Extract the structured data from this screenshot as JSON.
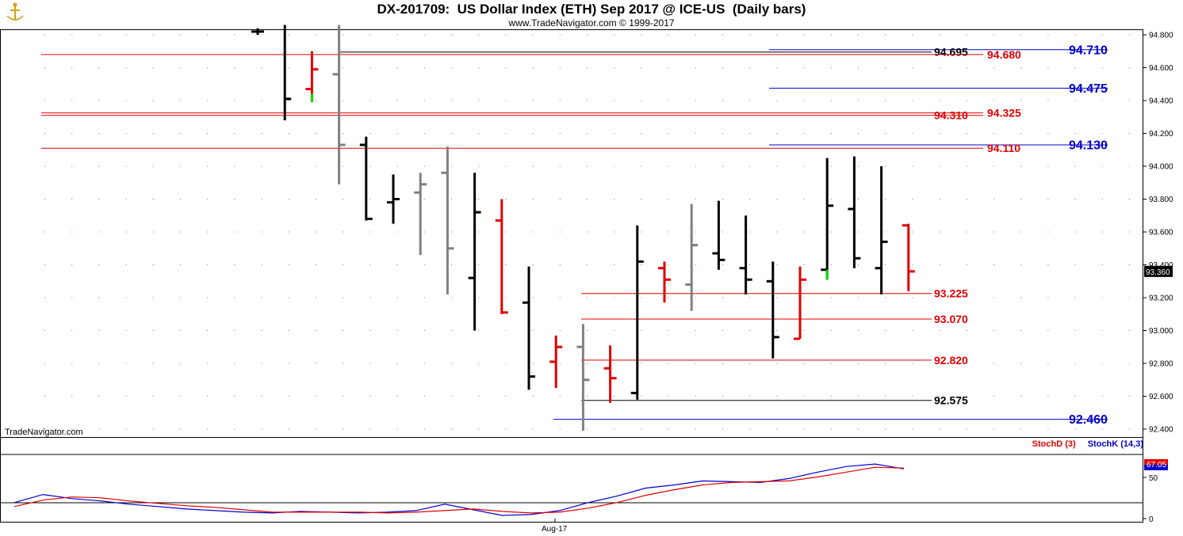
{
  "header": {
    "title": "DX-201709:  US Dollar Index (ETH) Sep 2017 @ ICE-US  (Daily bars)",
    "subtitle": "www.TradeNavigator.com © 1999-2017",
    "watermark": "TradeNavigator.com"
  },
  "colors": {
    "up": "#000000",
    "down": "#e00000",
    "neutral": "#808080",
    "stoch_d": "#e00000",
    "stoch_k": "#0000cc",
    "accent_green": "#00e000"
  },
  "chart_data": [
    {
      "type": "ohlc",
      "ylim": [
        92.38,
        94.86
      ],
      "yticks": [
        "94.800",
        "94.600",
        "94.400",
        "94.200",
        "94.000",
        "93.800",
        "93.600",
        "93.400",
        "93.200",
        "93.000",
        "92.800",
        "92.600",
        "92.400"
      ],
      "last_price": "93.360",
      "bars": [
        {
          "o": 94.82,
          "h": 94.84,
          "l": 94.8,
          "c": 94.82,
          "color": "black"
        },
        {
          "o": null,
          "h": 94.86,
          "l": 94.28,
          "c": 94.41,
          "color": "black"
        },
        {
          "o": 94.47,
          "h": 94.7,
          "l": 94.39,
          "c": 94.59,
          "color": "red",
          "green_tail": [
            94.39,
            94.44
          ]
        },
        {
          "o": 94.56,
          "h": 94.86,
          "l": 93.89,
          "c": 94.13,
          "color": "gray"
        },
        {
          "o": 94.13,
          "h": 94.18,
          "l": 93.67,
          "c": 93.68,
          "color": "black"
        },
        {
          "o": 93.78,
          "h": 93.95,
          "l": 93.65,
          "c": 93.8,
          "color": "black"
        },
        {
          "o": 93.84,
          "h": 93.96,
          "l": 93.46,
          "c": 93.89,
          "color": "gray"
        },
        {
          "o": 93.96,
          "h": 94.12,
          "l": 93.22,
          "c": 93.5,
          "color": "gray"
        },
        {
          "o": 93.32,
          "h": 93.96,
          "l": 93.0,
          "c": 93.72,
          "color": "black"
        },
        {
          "o": 93.67,
          "h": 93.8,
          "l": 93.1,
          "c": 93.11,
          "color": "red"
        },
        {
          "o": 93.17,
          "h": 93.39,
          "l": 92.64,
          "c": 92.72,
          "color": "black"
        },
        {
          "o": 92.81,
          "h": 92.97,
          "l": 92.65,
          "c": 92.9,
          "color": "red"
        },
        {
          "o": 92.9,
          "h": 93.04,
          "l": 92.39,
          "c": 92.7,
          "color": "gray"
        },
        {
          "o": 92.77,
          "h": 92.91,
          "l": 92.56,
          "c": 92.71,
          "color": "red"
        },
        {
          "o": 92.62,
          "h": 93.64,
          "l": 92.58,
          "c": 93.42,
          "color": "black"
        },
        {
          "o": 93.38,
          "h": 93.42,
          "l": 93.17,
          "c": 93.31,
          "color": "red"
        },
        {
          "o": 93.28,
          "h": 93.77,
          "l": 93.12,
          "c": 93.52,
          "color": "gray"
        },
        {
          "o": 93.47,
          "h": 93.79,
          "l": 93.37,
          "c": 93.43,
          "color": "black"
        },
        {
          "o": 93.38,
          "h": 93.7,
          "l": 93.22,
          "c": 93.31,
          "color": "black"
        },
        {
          "o": 93.3,
          "h": 93.42,
          "l": 92.83,
          "c": 92.96,
          "color": "black"
        },
        {
          "o": 92.95,
          "h": 93.39,
          "l": 92.95,
          "c": 93.31,
          "color": "red"
        },
        {
          "o": 93.37,
          "h": 94.05,
          "l": 93.31,
          "c": 93.76,
          "color": "black",
          "green_tail": [
            93.31,
            93.37
          ]
        },
        {
          "o": 93.74,
          "h": 94.06,
          "l": 93.38,
          "c": 93.44,
          "color": "black"
        },
        {
          "o": 93.38,
          "h": 94.0,
          "l": 93.22,
          "c": 93.54,
          "color": "black"
        },
        {
          "o": 93.64,
          "h": 93.65,
          "l": 93.24,
          "c": 93.36,
          "color": "red"
        }
      ],
      "levels": [
        {
          "value": 94.71,
          "label": "94.710",
          "color": "blue",
          "extend": "wide"
        },
        {
          "value": 94.695,
          "label": "94.695",
          "color": "black",
          "extend": "wide"
        },
        {
          "value": 94.68,
          "label": "94.680",
          "color": "red",
          "extend": "full"
        },
        {
          "value": 94.475,
          "label": "94.475",
          "color": "blue",
          "extend": "wide"
        },
        {
          "value": 94.325,
          "label": "94.325",
          "color": "red",
          "extend": "full"
        },
        {
          "value": 94.31,
          "label": "94.310",
          "color": "red",
          "extend": "full"
        },
        {
          "value": 94.13,
          "label": "94.130",
          "color": "blue",
          "extend": "wide"
        },
        {
          "value": 94.11,
          "label": "94.110",
          "color": "red",
          "extend": "full"
        },
        {
          "value": 93.225,
          "label": "93.225",
          "color": "red",
          "extend": "short"
        },
        {
          "value": 93.07,
          "label": "93.070",
          "color": "red",
          "extend": "short"
        },
        {
          "value": 92.82,
          "label": "92.820",
          "color": "red",
          "extend": "short"
        },
        {
          "value": 92.575,
          "label": "92.575",
          "color": "black",
          "extend": "short"
        },
        {
          "value": 92.46,
          "label": "92.460",
          "color": "blue",
          "extend": "long"
        }
      ]
    },
    {
      "type": "line",
      "ylim": [
        0,
        100
      ],
      "yticks": [
        "50",
        "0"
      ],
      "xlabel_tick": "Aug-17",
      "legend": [
        "StochD (3)",
        "StochK (14,3)"
      ],
      "last_value": "67.05",
      "series": [
        {
          "name": "StochK (14,3)",
          "values": [
            20,
            30,
            25,
            22,
            18,
            15,
            12,
            10,
            8,
            7,
            9,
            8,
            7,
            8,
            10,
            18,
            11,
            4,
            5,
            10,
            20,
            28,
            38,
            42,
            47,
            46,
            45,
            50,
            58,
            65,
            68,
            62
          ]
        },
        {
          "name": "StochD (3)",
          "values": [
            15,
            23,
            27,
            26,
            22,
            19,
            16,
            14,
            11,
            8,
            8,
            8,
            8,
            7,
            8,
            10,
            12,
            9,
            7,
            8,
            13,
            20,
            29,
            36,
            42,
            45,
            46,
            47,
            52,
            58,
            64,
            63
          ]
        }
      ]
    }
  ]
}
